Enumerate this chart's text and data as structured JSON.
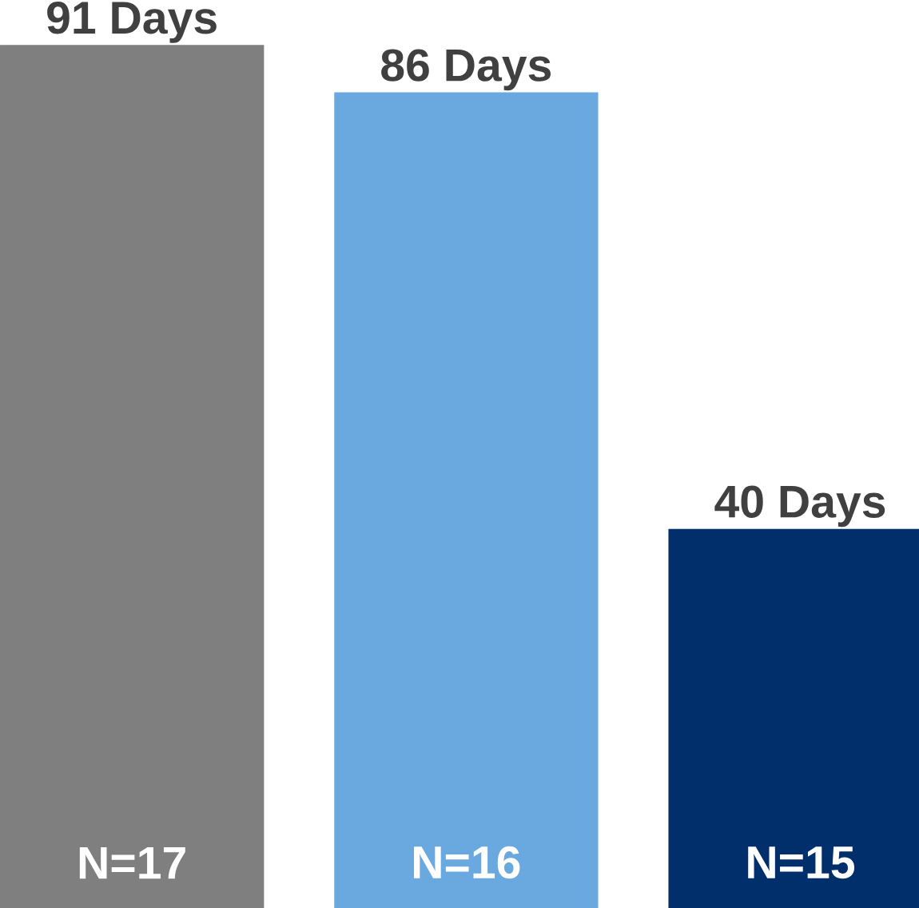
{
  "chart_data": {
    "type": "bar",
    "categories": [
      null,
      null,
      null
    ],
    "values": [
      91,
      86,
      40
    ],
    "colors": [
      "#7f7f7f",
      "#6aa9e0",
      "#002f6c"
    ],
    "value_labels": [
      "91 Days",
      "86 Days",
      "40 Days"
    ],
    "annotations": [
      "N=17",
      "N=16",
      "N=15"
    ]
  }
}
